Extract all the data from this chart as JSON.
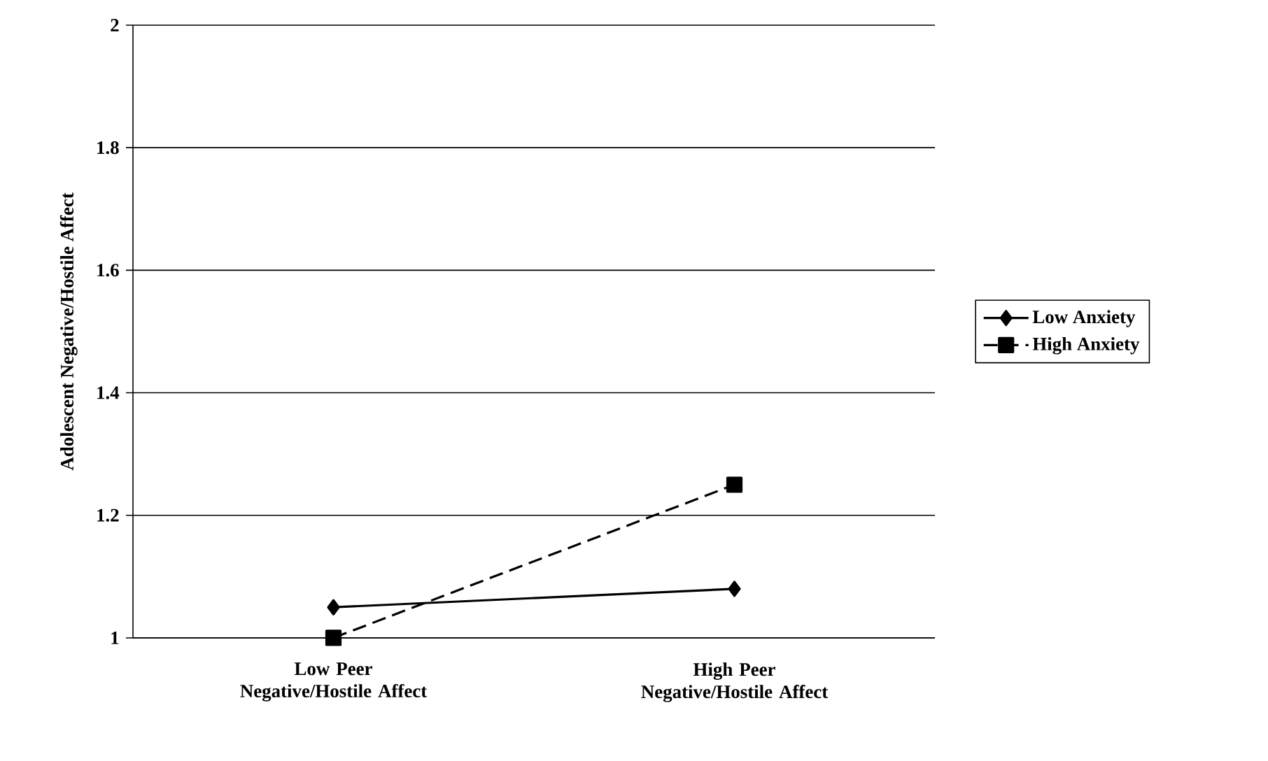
{
  "chart_data": {
    "type": "line",
    "ylabel": "Adolescent Negative/Hostile Affect",
    "categories": [
      "Low Peer Negative/Hostile Affect",
      "High Peer Negative/Hostile Affect"
    ],
    "series": [
      {
        "name": "Low Anxiety",
        "color": "#000000",
        "values": [
          1.05,
          1.08
        ],
        "marker": "diamond",
        "line_style": "solid"
      },
      {
        "name": "High Anxiety",
        "color": "#000000",
        "values": [
          1.0,
          1.25
        ],
        "marker": "square",
        "line_style": "dashed"
      }
    ],
    "ylim": [
      1,
      2
    ],
    "yticks": [
      1,
      1.2,
      1.4,
      1.6,
      1.8,
      2
    ],
    "grid": "y",
    "legend": "right"
  }
}
